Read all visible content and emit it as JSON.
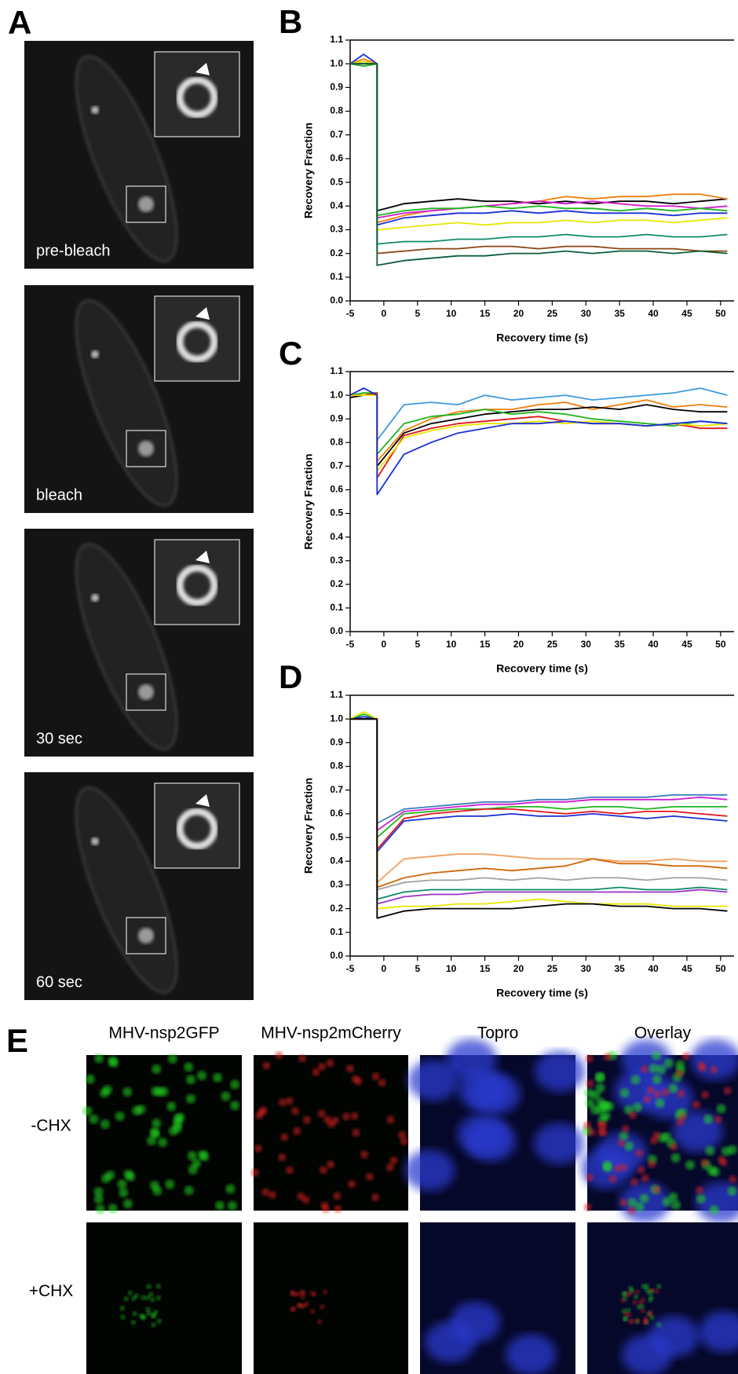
{
  "panel_A": {
    "letter": "A",
    "images": [
      "pre-bleach",
      "bleach",
      "30 sec",
      "60 sec"
    ]
  },
  "chart_data": [
    {
      "type": "line",
      "panel": "B",
      "x_label": "Recovery time (s)",
      "y_label": "Recovery Fraction",
      "x": [
        -5,
        -3,
        -1,
        -1,
        3,
        7,
        11,
        15,
        19,
        23,
        27,
        31,
        35,
        39,
        43,
        47,
        51
      ],
      "xlim": [
        -5,
        52
      ],
      "xticks": [
        -5,
        0,
        5,
        10,
        15,
        20,
        25,
        30,
        35,
        40,
        45,
        50
      ],
      "ylim": [
        0,
        1.1
      ],
      "yticks": [
        {
          "value": 0,
          "label": "0.0"
        },
        0.1,
        0.2,
        0.3,
        0.4,
        0.5,
        0.6,
        0.7,
        0.8,
        0.9,
        {
          "value": 1,
          "label": "1.0"
        },
        1.1
      ],
      "series": [
        {
          "color": "#000000",
          "values": [
            1.0,
            1.01,
            1.0,
            0.38,
            0.41,
            0.42,
            0.43,
            0.42,
            0.42,
            0.41,
            0.42,
            0.41,
            0.42,
            0.42,
            0.41,
            0.42,
            0.43
          ]
        },
        {
          "color": "#f07f0a",
          "values": [
            1.0,
            1.02,
            1.0,
            0.33,
            0.36,
            0.38,
            0.39,
            0.4,
            0.41,
            0.42,
            0.44,
            0.43,
            0.44,
            0.44,
            0.45,
            0.45,
            0.43
          ]
        },
        {
          "color": "#d21fd2",
          "values": [
            1.0,
            1.0,
            1.0,
            0.35,
            0.37,
            0.38,
            0.39,
            0.4,
            0.41,
            0.42,
            0.41,
            0.42,
            0.41,
            0.4,
            0.4,
            0.39,
            0.4
          ]
        },
        {
          "color": "#1fb51f",
          "values": [
            1.0,
            0.99,
            1.0,
            0.36,
            0.38,
            0.39,
            0.39,
            0.4,
            0.39,
            0.4,
            0.39,
            0.39,
            0.38,
            0.39,
            0.38,
            0.39,
            0.38
          ]
        },
        {
          "color": "#1a2fd6",
          "values": [
            1.0,
            1.04,
            1.0,
            0.32,
            0.35,
            0.36,
            0.37,
            0.37,
            0.38,
            0.37,
            0.38,
            0.37,
            0.37,
            0.37,
            0.36,
            0.37,
            0.37
          ]
        },
        {
          "color": "#e6e600",
          "values": [
            1.0,
            1.01,
            1.0,
            0.3,
            0.31,
            0.32,
            0.33,
            0.32,
            0.33,
            0.33,
            0.34,
            0.33,
            0.34,
            0.34,
            0.33,
            0.34,
            0.35
          ]
        },
        {
          "color": "#0d8a6a",
          "values": [
            1.0,
            1.0,
            1.0,
            0.24,
            0.25,
            0.25,
            0.26,
            0.26,
            0.27,
            0.27,
            0.28,
            0.27,
            0.27,
            0.28,
            0.27,
            0.27,
            0.28
          ]
        },
        {
          "color": "#8b4513",
          "values": [
            1.0,
            1.0,
            1.0,
            0.2,
            0.21,
            0.22,
            0.22,
            0.23,
            0.23,
            0.22,
            0.23,
            0.23,
            0.22,
            0.22,
            0.22,
            0.21,
            0.21
          ]
        },
        {
          "color": "#0b5e3b",
          "values": [
            1.0,
            1.0,
            1.0,
            0.15,
            0.17,
            0.18,
            0.19,
            0.19,
            0.2,
            0.2,
            0.21,
            0.2,
            0.21,
            0.21,
            0.2,
            0.21,
            0.2
          ]
        }
      ]
    },
    {
      "type": "line",
      "panel": "C",
      "x_label": "Recovery time (s)",
      "y_label": "Recovery Fraction",
      "x": [
        -5,
        -3,
        -1,
        -1,
        3,
        7,
        11,
        15,
        19,
        23,
        27,
        31,
        35,
        39,
        43,
        47,
        51
      ],
      "xlim": [
        -5,
        52
      ],
      "xticks": [
        -5,
        0,
        5,
        10,
        15,
        20,
        25,
        30,
        35,
        40,
        45,
        50
      ],
      "ylim": [
        0,
        1.1
      ],
      "yticks": [
        {
          "value": 0,
          "label": "0.0"
        },
        0.1,
        0.2,
        0.3,
        0.4,
        0.5,
        0.6,
        0.7,
        0.8,
        0.9,
        {
          "value": 1,
          "label": "1.0"
        },
        1.1
      ],
      "series": [
        {
          "color": "#3f9ae0",
          "values": [
            0.99,
            1.01,
            1.0,
            0.81,
            0.96,
            0.97,
            0.96,
            1.0,
            0.98,
            0.99,
            1.0,
            0.98,
            0.99,
            1.0,
            1.01,
            1.03,
            1.0
          ]
        },
        {
          "color": "#f07f0a",
          "values": [
            0.99,
            1.01,
            1.0,
            0.72,
            0.85,
            0.9,
            0.93,
            0.94,
            0.94,
            0.96,
            0.97,
            0.94,
            0.96,
            0.98,
            0.95,
            0.96,
            0.95
          ]
        },
        {
          "color": "#000000",
          "values": [
            0.99,
            1.0,
            1.0,
            0.7,
            0.84,
            0.88,
            0.9,
            0.92,
            0.93,
            0.94,
            0.94,
            0.95,
            0.94,
            0.96,
            0.94,
            0.93,
            0.93
          ]
        },
        {
          "color": "#1fb51f",
          "values": [
            1.0,
            1.01,
            1.01,
            0.75,
            0.88,
            0.91,
            0.92,
            0.94,
            0.92,
            0.93,
            0.92,
            0.9,
            0.89,
            0.88,
            0.87,
            0.89,
            0.88
          ]
        },
        {
          "color": "#e0161b",
          "values": [
            1.0,
            1.0,
            1.01,
            0.65,
            0.83,
            0.86,
            0.88,
            0.89,
            0.9,
            0.91,
            0.89,
            0.88,
            0.88,
            0.87,
            0.88,
            0.86,
            0.86
          ]
        },
        {
          "color": "#e6e600",
          "values": [
            1.0,
            1.0,
            1.0,
            0.68,
            0.82,
            0.85,
            0.87,
            0.88,
            0.88,
            0.89,
            0.88,
            0.89,
            0.88,
            0.87,
            0.88,
            0.87,
            0.88
          ]
        },
        {
          "color": "#1a2fd6",
          "values": [
            1.0,
            1.03,
            1.0,
            0.58,
            0.75,
            0.8,
            0.84,
            0.86,
            0.88,
            0.88,
            0.89,
            0.88,
            0.88,
            0.87,
            0.88,
            0.89,
            0.88
          ]
        }
      ]
    },
    {
      "type": "line",
      "panel": "D",
      "x_label": "Recovery time (s)",
      "y_label": "Recovery Fraction",
      "x": [
        -5,
        -3,
        -1,
        -1,
        3,
        7,
        11,
        15,
        19,
        23,
        27,
        31,
        35,
        39,
        43,
        47,
        51
      ],
      "xlim": [
        -5,
        52
      ],
      "xticks": [
        -5,
        0,
        5,
        10,
        15,
        20,
        25,
        30,
        35,
        40,
        45,
        50
      ],
      "ylim": [
        0,
        1.1
      ],
      "yticks": [
        {
          "value": 0,
          "label": "0.0"
        },
        0.1,
        0.2,
        0.3,
        0.4,
        0.5,
        0.6,
        0.7,
        0.8,
        0.9,
        {
          "value": 1,
          "label": "1.0"
        },
        1.1
      ],
      "series": [
        {
          "color": "#3f7fbf",
          "values": [
            1.0,
            1.01,
            1.0,
            0.56,
            0.62,
            0.63,
            0.64,
            0.65,
            0.65,
            0.66,
            0.66,
            0.67,
            0.67,
            0.67,
            0.68,
            0.68,
            0.68
          ]
        },
        {
          "color": "#d21fd2",
          "values": [
            1.0,
            1.0,
            1.0,
            0.53,
            0.61,
            0.62,
            0.63,
            0.64,
            0.64,
            0.65,
            0.65,
            0.66,
            0.66,
            0.66,
            0.66,
            0.67,
            0.66
          ]
        },
        {
          "color": "#1fb51f",
          "values": [
            1.0,
            1.02,
            1.0,
            0.5,
            0.6,
            0.61,
            0.62,
            0.62,
            0.63,
            0.63,
            0.62,
            0.63,
            0.63,
            0.62,
            0.63,
            0.63,
            0.63
          ]
        },
        {
          "color": "#e0161b",
          "values": [
            1.0,
            1.0,
            1.0,
            0.45,
            0.58,
            0.6,
            0.61,
            0.62,
            0.62,
            0.61,
            0.6,
            0.61,
            0.6,
            0.61,
            0.61,
            0.6,
            0.59
          ]
        },
        {
          "color": "#1a2fd6",
          "values": [
            1.0,
            1.01,
            1.0,
            0.44,
            0.57,
            0.58,
            0.59,
            0.59,
            0.6,
            0.59,
            0.59,
            0.6,
            0.59,
            0.58,
            0.59,
            0.58,
            0.57
          ]
        },
        {
          "color": "#f0a060",
          "values": [
            1.0,
            1.0,
            1.0,
            0.31,
            0.41,
            0.42,
            0.43,
            0.43,
            0.42,
            0.41,
            0.41,
            0.41,
            0.4,
            0.4,
            0.41,
            0.4,
            0.4
          ]
        },
        {
          "color": "#d2670a",
          "values": [
            1.0,
            1.0,
            1.0,
            0.29,
            0.33,
            0.35,
            0.36,
            0.37,
            0.36,
            0.37,
            0.38,
            0.41,
            0.39,
            0.39,
            0.38,
            0.38,
            0.37
          ]
        },
        {
          "color": "#a0a0a0",
          "values": [
            1.0,
            1.0,
            1.0,
            0.28,
            0.31,
            0.32,
            0.32,
            0.33,
            0.32,
            0.33,
            0.32,
            0.33,
            0.33,
            0.32,
            0.33,
            0.33,
            0.32
          ]
        },
        {
          "color": "#0d8a6a",
          "values": [
            1.0,
            1.0,
            1.0,
            0.24,
            0.27,
            0.28,
            0.28,
            0.28,
            0.28,
            0.28,
            0.28,
            0.28,
            0.29,
            0.28,
            0.28,
            0.29,
            0.28
          ]
        },
        {
          "color": "#9b30c8",
          "values": [
            1.0,
            1.0,
            1.0,
            0.22,
            0.25,
            0.26,
            0.26,
            0.27,
            0.27,
            0.27,
            0.27,
            0.27,
            0.27,
            0.27,
            0.27,
            0.28,
            0.27
          ]
        },
        {
          "color": "#e6e600",
          "values": [
            1.0,
            1.03,
            1.0,
            0.2,
            0.21,
            0.21,
            0.22,
            0.22,
            0.23,
            0.24,
            0.23,
            0.22,
            0.22,
            0.22,
            0.21,
            0.21,
            0.21
          ]
        },
        {
          "color": "#000000",
          "values": [
            1.0,
            1.0,
            1.0,
            0.16,
            0.19,
            0.2,
            0.2,
            0.2,
            0.2,
            0.21,
            0.22,
            0.22,
            0.21,
            0.21,
            0.2,
            0.2,
            0.19
          ]
        }
      ]
    }
  ],
  "panel_E": {
    "letter": "E",
    "columns": [
      "MHV-nsp2GFP",
      "MHV-nsp2mCherry",
      "Topro",
      "Overlay"
    ],
    "rows": [
      "-CHX",
      "+CHX"
    ]
  }
}
